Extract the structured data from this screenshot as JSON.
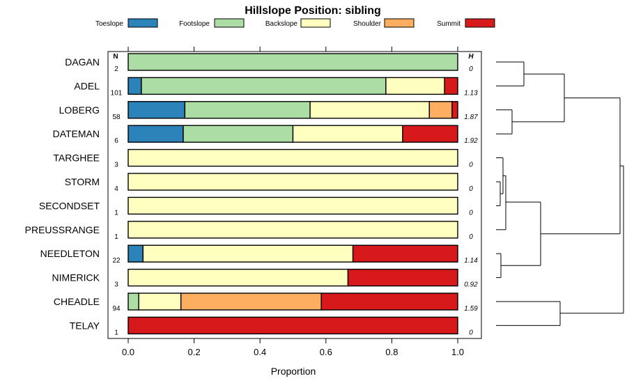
{
  "chart_data": {
    "type": "bar",
    "orientation": "horizontal",
    "stacked": true,
    "title": "Hillslope Position: sibling",
    "xlabel": "Proportion",
    "xlim": [
      0,
      1
    ],
    "xticks": [
      "0.0",
      "0.2",
      "0.4",
      "0.6",
      "0.8",
      "1.0"
    ],
    "legend": {
      "placement": "top"
    },
    "n_header": "N",
    "h_header": "H",
    "categories": [
      "DAGAN",
      "ADEL",
      "LOBERG",
      "DATEMAN",
      "TARGHEE",
      "STORM",
      "SECONDSET",
      "PREUSSRANGE",
      "NEEDLETON",
      "NIMERICK",
      "CHEADLE",
      "TELAY"
    ],
    "n": [
      "2",
      "101",
      "58",
      "6",
      "3",
      "4",
      "1",
      "1",
      "22",
      "3",
      "94",
      "1"
    ],
    "h": [
      "0",
      "1.13",
      "1.87",
      "1.92",
      "0",
      "0",
      "0",
      "0",
      "1.14",
      "0.92",
      "1.59",
      "0"
    ],
    "series": [
      {
        "name": "Toeslope",
        "color": "#2b83ba",
        "values": [
          0,
          0.04,
          0.172,
          0.167,
          0,
          0,
          0,
          0,
          0.045,
          0,
          0,
          0
        ]
      },
      {
        "name": "Footslope",
        "color": "#abdda4",
        "values": [
          1,
          0.742,
          0.38,
          0.333,
          0,
          0,
          0,
          0,
          0,
          0,
          0.032,
          0
        ]
      },
      {
        "name": "Backslope",
        "color": "#ffffbf",
        "values": [
          0,
          0.178,
          0.362,
          0.333,
          1,
          1,
          1,
          1,
          0.637,
          0.667,
          0.128,
          0
        ]
      },
      {
        "name": "Shoulder",
        "color": "#fdae61",
        "values": [
          0,
          0,
          0.069,
          0,
          0,
          0,
          0,
          0,
          0,
          0,
          0.426,
          0
        ]
      },
      {
        "name": "Summit",
        "color": "#d7191c",
        "values": [
          0,
          0.04,
          0.017,
          0.167,
          0,
          0,
          0,
          0,
          0.318,
          0.333,
          0.414,
          1
        ]
      }
    ]
  }
}
